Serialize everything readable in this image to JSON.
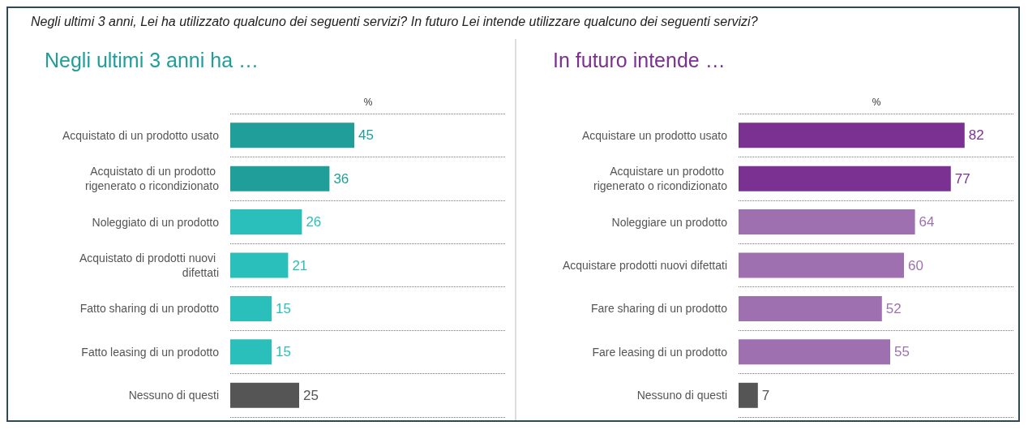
{
  "chart_data": [
    {
      "type": "bar",
      "orientation": "horizontal",
      "title": "Negli ultimi 3 anni, Lei ha utilizzato qualcuno dei seguenti servizi? In futuro Lei intende utilizzare qualcuno dei seguenti servizi?",
      "subtitle": "Negli ultimi 3 anni ha …",
      "xlabel": "%",
      "categories": [
        "Acquistato di un prodotto usato",
        "Acquistato di un prodotto rigenerato o ricondizionato",
        "Noleggiato di un prodotto",
        "Acquistato di prodotti nuovi difettati",
        "Fatto sharing di un prodotto",
        "Fatto leasing di un prodotto",
        "Nessuno di questi"
      ],
      "values": [
        45,
        36,
        26,
        21,
        15,
        15,
        25
      ],
      "colors": [
        "#1f9e9a",
        "#1f9e9a",
        "#2abfba",
        "#2abfba",
        "#2abfba",
        "#2abfba",
        "#555555"
      ],
      "xlim": [
        0,
        100
      ],
      "data_labels": true,
      "grid": "y"
    },
    {
      "type": "bar",
      "orientation": "horizontal",
      "title": "In futuro intende …",
      "xlabel": "%",
      "categories": [
        "Acquistare un prodotto usato",
        "Acquistare un prodotto rigenerato o ricondizionato",
        "Noleggiare un prodotto",
        "Acquistare prodotti nuovi difettati",
        "Fare sharing di un prodotto",
        "Fare leasing di un prodotto",
        "Nessuno di questi"
      ],
      "values": [
        82,
        77,
        64,
        60,
        52,
        55,
        7
      ],
      "colors": [
        "#7b3191",
        "#7b3191",
        "#9e70b0",
        "#9e70b0",
        "#9e70b0",
        "#9e70b0",
        "#555555"
      ],
      "xlim": [
        0,
        100
      ],
      "data_labels": true,
      "grid": "y"
    }
  ]
}
